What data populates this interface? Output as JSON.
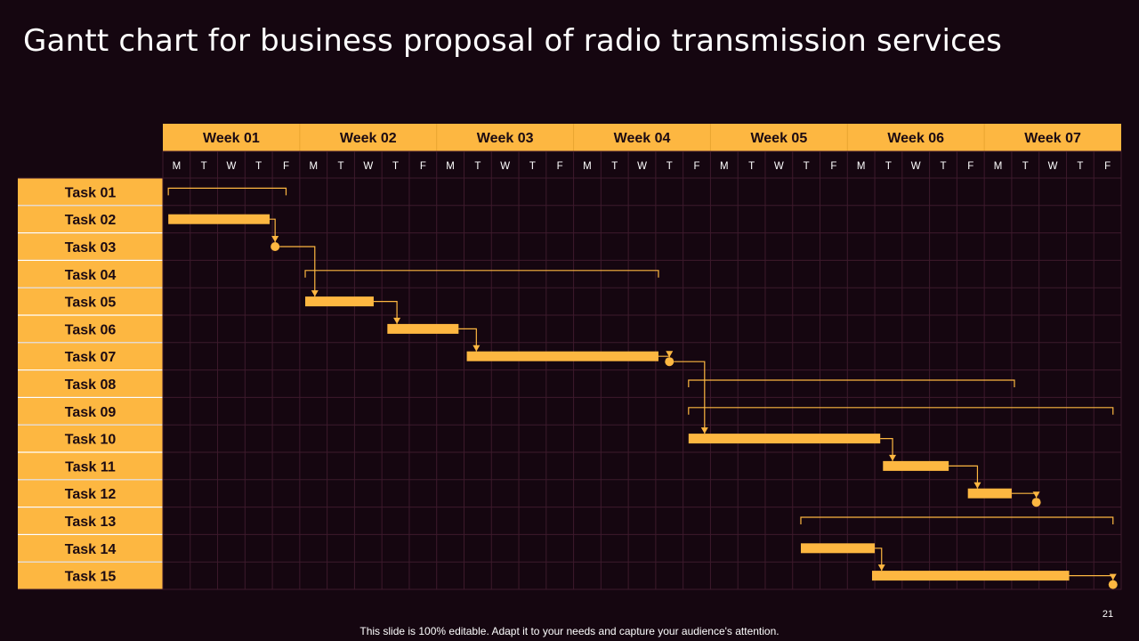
{
  "title": "Gantt chart for business proposal of radio transmission services",
  "footer": "This slide is 100% editable. Adapt it to your needs and capture your audience's attention.",
  "page_number": "21",
  "colors": {
    "background": "#150610",
    "accent": "#FDB741",
    "grid": "#3d1a2c",
    "text_dark": "#1b0a12",
    "text_light": "#ffffff"
  },
  "chart_data": {
    "type": "gantt",
    "weeks": [
      "Week 01",
      "Week 02",
      "Week 03",
      "Week 04",
      "Week 05",
      "Week 06",
      "Week 07"
    ],
    "days": [
      "M",
      "T",
      "W",
      "T",
      "F"
    ],
    "tasks": [
      {
        "label": "Task 01",
        "kind": "group",
        "start": 0.2,
        "end": 4.5
      },
      {
        "label": "Task 02",
        "kind": "bar",
        "start": 0.2,
        "end": 3.9
      },
      {
        "label": "Task 03",
        "kind": "milestone",
        "at": 4.1
      },
      {
        "label": "Task 04",
        "kind": "group",
        "start": 5.2,
        "end": 18.1
      },
      {
        "label": "Task 05",
        "kind": "bar",
        "start": 5.2,
        "end": 7.7
      },
      {
        "label": "Task 06",
        "kind": "bar",
        "start": 8.2,
        "end": 10.8
      },
      {
        "label": "Task 07",
        "kind": "bar",
        "start": 11.1,
        "end": 18.1
      },
      {
        "label": "Task 08",
        "kind": "group",
        "start": 19.2,
        "end": 31.1
      },
      {
        "label": "Task 09",
        "kind": "group",
        "start": 19.2,
        "end": 34.7
      },
      {
        "label": "Task 10",
        "kind": "bar",
        "start": 19.2,
        "end": 26.2
      },
      {
        "label": "Task 11",
        "kind": "bar",
        "start": 26.3,
        "end": 28.7
      },
      {
        "label": "Task 12",
        "kind": "bar",
        "start": 29.4,
        "end": 31.0
      },
      {
        "label": "Task 13",
        "kind": "group",
        "start": 23.3,
        "end": 34.7
      },
      {
        "label": "Task 14",
        "kind": "bar",
        "start": 23.3,
        "end": 26.0
      },
      {
        "label": "Task 15",
        "kind": "bar",
        "start": 25.9,
        "end": 33.1
      }
    ],
    "end_milestones": [
      {
        "row": 6,
        "at": 18.5
      },
      {
        "row": 11,
        "at": 31.9
      },
      {
        "row": 14,
        "at": 34.7
      }
    ],
    "dependencies": [
      {
        "from": 1,
        "to": 2,
        "target": "milestone"
      },
      {
        "from": 2,
        "to": 4,
        "target": "bar"
      },
      {
        "from": 4,
        "to": 5,
        "target": "bar"
      },
      {
        "from": 5,
        "to": 6,
        "target": "bar"
      },
      {
        "from": 6,
        "to": 6,
        "target": "end-milestone",
        "milestone": 0
      },
      {
        "from": 6,
        "to": 9,
        "target": "bar",
        "via": "milestone",
        "milestone": 0
      },
      {
        "from": 9,
        "to": 10,
        "target": "bar"
      },
      {
        "from": 10,
        "to": 11,
        "target": "bar"
      },
      {
        "from": 11,
        "to": 11,
        "target": "end-milestone",
        "milestone": 1
      },
      {
        "from": 13,
        "to": 14,
        "target": "bar"
      },
      {
        "from": 14,
        "to": 14,
        "target": "end-milestone",
        "milestone": 2
      }
    ]
  }
}
